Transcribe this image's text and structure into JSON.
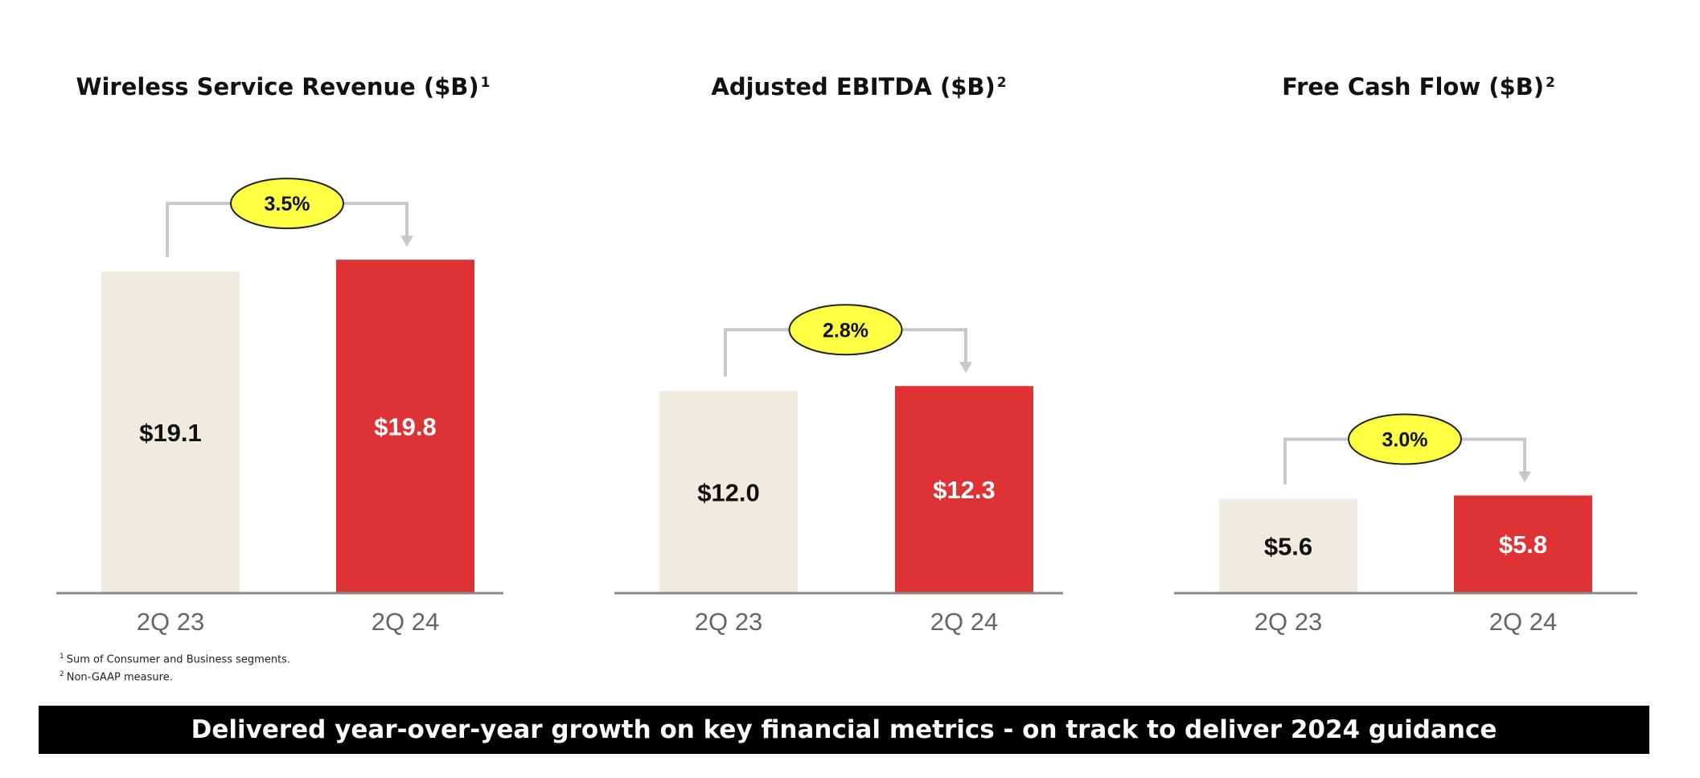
{
  "colors": {
    "prior_bar": "#f0ebe0",
    "current_bar": "#df3235",
    "growth_oval": "#ffff44",
    "connector": "#c8c8c8",
    "baseline": "#8a8a8a"
  },
  "chart_data": [
    {
      "type": "bar",
      "title": "Wireless Service Revenue ($B)",
      "title_sup": "1",
      "categories": [
        "2Q 23",
        "2Q 24"
      ],
      "values": [
        19.1,
        19.8
      ],
      "value_labels": [
        "$19.1",
        "$19.8"
      ],
      "growth": "3.5%",
      "ylim": [
        0,
        21
      ]
    },
    {
      "type": "bar",
      "title": "Adjusted EBITDA ($B)",
      "title_sup": "2",
      "categories": [
        "2Q 23",
        "2Q 24"
      ],
      "values": [
        12.0,
        12.3
      ],
      "value_labels": [
        "$12.0",
        "$12.3"
      ],
      "growth": "2.8%",
      "ylim": [
        0,
        21
      ]
    },
    {
      "type": "bar",
      "title": "Free Cash Flow ($B)",
      "title_sup": "2",
      "categories": [
        "2Q 23",
        "2Q 24"
      ],
      "values": [
        5.6,
        5.8
      ],
      "value_labels": [
        "$5.6",
        "$5.8"
      ],
      "growth": "3.0%",
      "ylim": [
        0,
        21
      ]
    }
  ],
  "footnotes": [
    {
      "marker": "1",
      "text": "Sum of Consumer and Business segments."
    },
    {
      "marker": "2",
      "text": "Non-GAAP measure."
    }
  ],
  "banner": {
    "text": "Delivered year-over-year growth on key financial metrics - on track to deliver 2024 guidance"
  }
}
